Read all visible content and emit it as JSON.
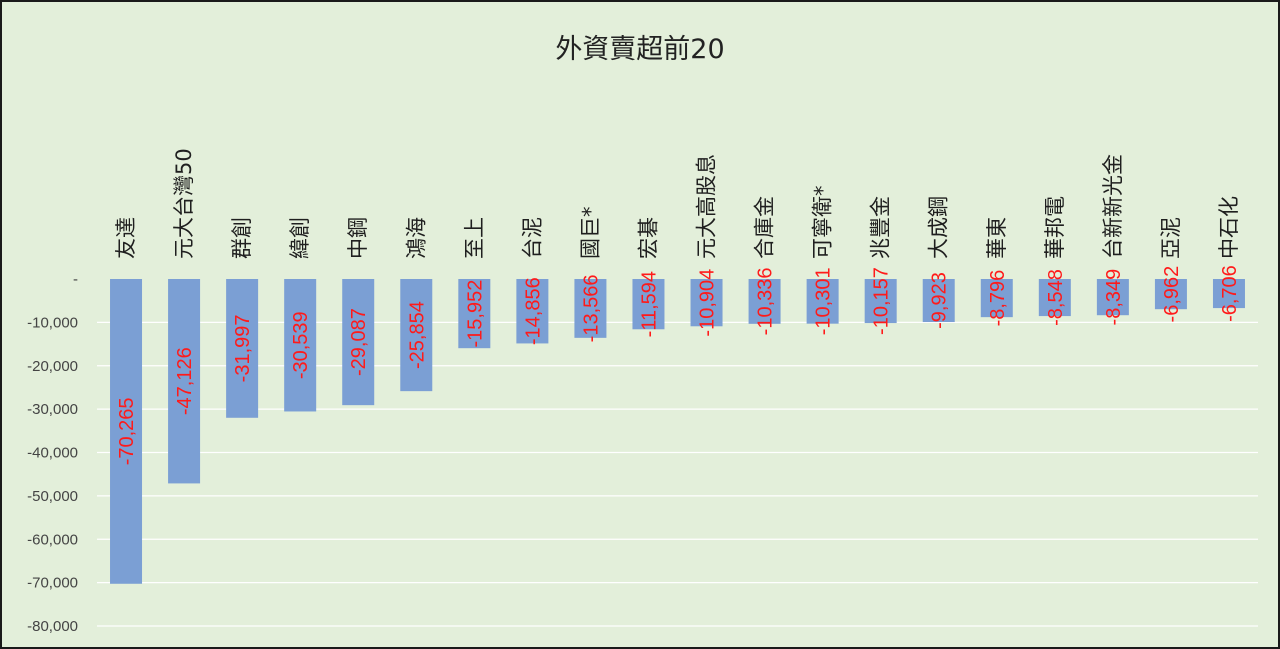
{
  "chart_data": {
    "type": "bar",
    "title": "外資賣超前20",
    "categories": [
      "友達",
      "元大台灣50",
      "群創",
      "緯創",
      "中鋼",
      "鴻海",
      "至上",
      "台泥",
      "國巨*",
      "宏碁",
      "元大高股息",
      "合庫金",
      "可寧衛*",
      "兆豐金",
      "大成鋼",
      "華東",
      "華邦電",
      "台新新光金",
      "亞泥",
      "中石化"
    ],
    "values": [
      -70265,
      -47126,
      -31997,
      -30539,
      -29087,
      -25854,
      -15952,
      -14856,
      -13566,
      -11594,
      -10904,
      -10336,
      -10301,
      -10157,
      -9923,
      -8796,
      -8548,
      -8349,
      -6962,
      -6706
    ],
    "data_labels": [
      "-70,265",
      "-47,126",
      "-31,997",
      "-30,539",
      "-29,087",
      "-25,854",
      "-15,952",
      "-14,856",
      "-13,566",
      "-11,594",
      "-10,904",
      "-10,336",
      "-10,301",
      "-10,157",
      "-9,923",
      "-8,796",
      "-8,548",
      "-8,349",
      "-6,962",
      "-6,706"
    ],
    "ylim": [
      -80000,
      0
    ],
    "y_ticks": [
      0,
      -10000,
      -20000,
      -30000,
      -40000,
      -50000,
      -60000,
      -70000,
      -80000
    ],
    "y_tick_labels": [
      "-",
      "-10,000",
      "-20,000",
      "-30,000",
      "-40,000",
      "-50,000",
      "-60,000",
      "-70,000",
      "-80,000"
    ],
    "grid": true,
    "xlabel": "",
    "ylabel": "",
    "colors": {
      "bar": "#7b9fd4",
      "label": "#ff1a1a",
      "background": "#e3efda"
    }
  }
}
